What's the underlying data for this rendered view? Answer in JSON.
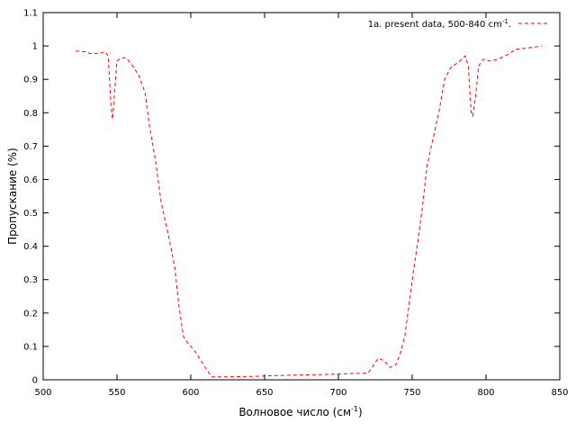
{
  "chart_data": {
    "type": "line",
    "title": "",
    "xlabel": "Волновое число (см",
    "xlabel_sup": "-1",
    "xlabel_tail": ")",
    "ylabel": "Пропускание (%)",
    "xlim": [
      500,
      850
    ],
    "ylim": [
      0,
      1.1
    ],
    "grid": false,
    "legend_position": "top-right",
    "x_ticks": [
      "500",
      "550",
      "600",
      "650",
      "700",
      "750",
      "800",
      "850"
    ],
    "y_ticks": [
      "0",
      "0.1",
      "0.2",
      "0.3",
      "0.4",
      "0.5",
      "0.6",
      "0.7",
      "0.8",
      "0.9",
      "1",
      "1.1"
    ],
    "series": [
      {
        "name": "1a. present data, 500-840 cm",
        "name_sup": "-1",
        "name_tail": ".",
        "color": "#ff0000",
        "line_style": "dashed",
        "points": [
          [
            522,
            0.985
          ],
          [
            528,
            0.983
          ],
          [
            532,
            0.977
          ],
          [
            538,
            0.978
          ],
          [
            542,
            0.983
          ],
          [
            544,
            0.97
          ],
          [
            546,
            0.82
          ],
          [
            547,
            0.78
          ],
          [
            548,
            0.84
          ],
          [
            550,
            0.955
          ],
          [
            553,
            0.965
          ],
          [
            556,
            0.965
          ],
          [
            560,
            0.945
          ],
          [
            565,
            0.91
          ],
          [
            569,
            0.86
          ],
          [
            572,
            0.76
          ],
          [
            576,
            0.66
          ],
          [
            580,
            0.53
          ],
          [
            585,
            0.43
          ],
          [
            589,
            0.34
          ],
          [
            592,
            0.22
          ],
          [
            595,
            0.13
          ],
          [
            598,
            0.11
          ],
          [
            603,
            0.085
          ],
          [
            608,
            0.05
          ],
          [
            614,
            0.009
          ],
          [
            625,
            0.009
          ],
          [
            640,
            0.01
          ],
          [
            655,
            0.012
          ],
          [
            670,
            0.014
          ],
          [
            690,
            0.016
          ],
          [
            705,
            0.018
          ],
          [
            720,
            0.02
          ],
          [
            724,
            0.045
          ],
          [
            727,
            0.065
          ],
          [
            731,
            0.057
          ],
          [
            735,
            0.037
          ],
          [
            739,
            0.045
          ],
          [
            742,
            0.08
          ],
          [
            745,
            0.13
          ],
          [
            748,
            0.23
          ],
          [
            751,
            0.33
          ],
          [
            754,
            0.42
          ],
          [
            757,
            0.52
          ],
          [
            760,
            0.64
          ],
          [
            764,
            0.72
          ],
          [
            768,
            0.8
          ],
          [
            772,
            0.9
          ],
          [
            776,
            0.935
          ],
          [
            781,
            0.95
          ],
          [
            786,
            0.97
          ],
          [
            788,
            0.94
          ],
          [
            790,
            0.8
          ],
          [
            791,
            0.79
          ],
          [
            793,
            0.85
          ],
          [
            795,
            0.94
          ],
          [
            798,
            0.96
          ],
          [
            803,
            0.955
          ],
          [
            808,
            0.96
          ],
          [
            815,
            0.975
          ],
          [
            820,
            0.99
          ],
          [
            830,
            0.995
          ],
          [
            838,
            1.0
          ]
        ]
      }
    ]
  }
}
